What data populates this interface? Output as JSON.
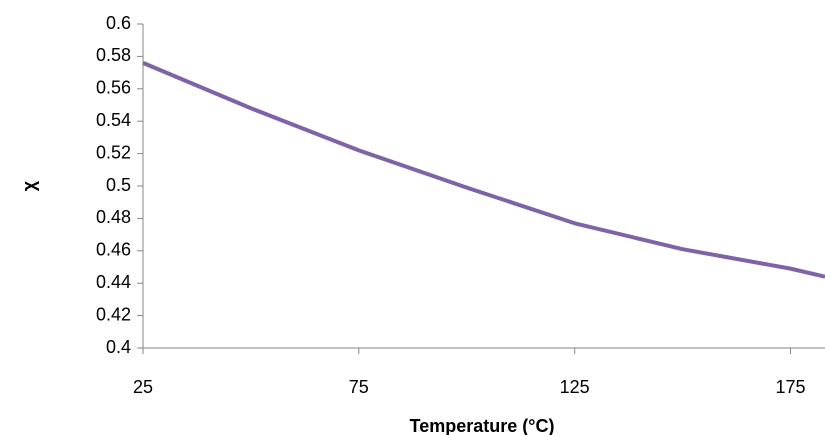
{
  "chart_data": {
    "type": "line",
    "x_label": "Temperature (°C)",
    "y_label": "χ",
    "x": [
      25,
      50,
      75,
      100,
      125,
      150,
      175,
      183
    ],
    "series": [
      {
        "color": "#7f63a6",
        "values": [
          0.576,
          0.548,
          0.522,
          0.499,
          0.477,
          0.461,
          0.449,
          0.444
        ]
      }
    ],
    "xlim": [
      25,
      183
    ],
    "xticks": [
      25,
      75,
      125,
      175
    ],
    "ylim": [
      0.4,
      0.6
    ],
    "yticks": [
      0.4,
      0.42,
      0.44,
      0.46,
      0.48,
      0.5,
      0.52,
      0.54,
      0.56,
      0.58,
      0.6
    ],
    "grid": false
  }
}
